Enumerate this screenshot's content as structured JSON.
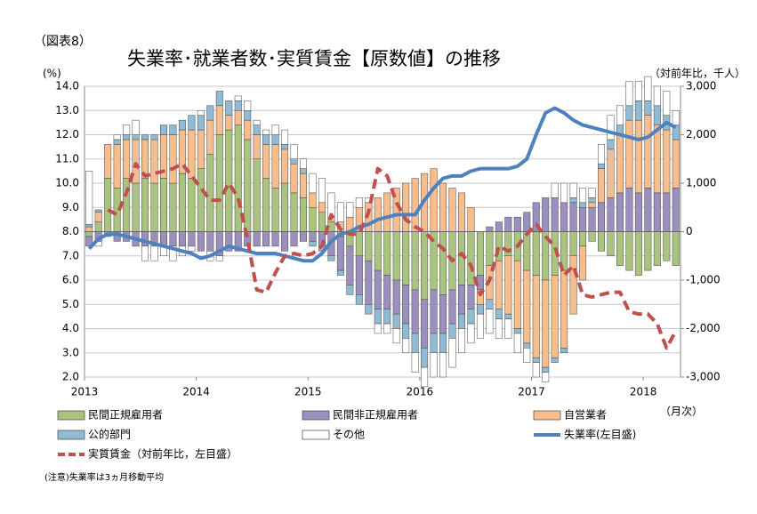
{
  "chart_data": {
    "type": "bar",
    "label": "（図表8）",
    "title": "失業率･就業者数･実質賃金【原数値】の推移",
    "ylabel": "(%)",
    "y2label": "（対前年比，千人）",
    "xlabel": "（月次）",
    "note": "(注意)失業率は3ヵ月移動平均",
    "stacked": true,
    "grid": true,
    "categories": [
      "2013",
      null,
      null,
      null,
      null,
      null,
      null,
      null,
      null,
      null,
      null,
      null,
      "2014",
      null,
      null,
      null,
      null,
      null,
      null,
      null,
      null,
      null,
      null,
      null,
      "2015",
      null,
      null,
      null,
      null,
      null,
      null,
      null,
      null,
      null,
      null,
      null,
      "2016",
      null,
      null,
      null,
      null,
      null,
      null,
      null,
      null,
      null,
      null,
      null,
      "2017",
      null,
      null,
      null,
      null,
      null,
      null,
      null,
      null,
      null,
      null,
      null,
      "2018",
      null,
      null,
      null
    ],
    "ylim": [
      2,
      14
    ],
    "yticks": [
      {
        "value": 2,
        "label": "2.0"
      },
      {
        "value": 3,
        "label": "3.0"
      },
      {
        "value": 4,
        "label": "4.0"
      },
      {
        "value": 5,
        "label": "5.0"
      },
      {
        "value": 6,
        "label": "6.0"
      },
      {
        "value": 7,
        "label": "7.0"
      },
      {
        "value": 8,
        "label": "8.0"
      },
      {
        "value": 9,
        "label": "9.0"
      },
      {
        "value": 10,
        "label": "10.0"
      },
      {
        "value": 11,
        "label": "11.0"
      },
      {
        "value": 12,
        "label": "12.0"
      },
      {
        "value": 13,
        "label": "13.0"
      },
      {
        "value": 14,
        "label": "14.0"
      }
    ],
    "y2lim": [
      -3000,
      3000
    ],
    "y2ticks": [
      {
        "value": -3000,
        "label": "-3,000"
      },
      {
        "value": -2000,
        "label": "-2,000"
      },
      {
        "value": -1000,
        "label": "-1,000"
      },
      0,
      {
        "value": 1000,
        "label": "1,000"
      },
      {
        "value": 2000,
        "label": "2,000"
      },
      {
        "value": 3000,
        "label": "3,000"
      }
    ],
    "series": [
      {
        "name": "民間正規雇用者",
        "color": "#a9c47f",
        "axis": "y2",
        "values": [
          -100,
          200,
          1100,
          900,
          1100,
          1000,
          1100,
          1000,
          1100,
          1000,
          1200,
          1100,
          1300,
          1600,
          2000,
          2100,
          2200,
          1900,
          1500,
          1100,
          900,
          1000,
          800,
          700,
          500,
          400,
          200,
          -100,
          -300,
          -500,
          -600,
          -800,
          -900,
          -1000,
          -1100,
          -1200,
          -1400,
          -1200,
          -1300,
          -1200,
          -1100,
          -1100,
          -900,
          -700,
          -600,
          -500,
          -600,
          -800,
          -900,
          -1000,
          -900,
          -800,
          -500,
          -300,
          -200,
          -400,
          -500,
          -700,
          -800,
          -900,
          -800,
          -700,
          -600,
          -700
        ]
      },
      {
        "name": "民間非正規雇用者",
        "color": "#9b8fc0",
        "axis": "y2",
        "values": [
          -200,
          -200,
          -100,
          -200,
          -200,
          -300,
          -300,
          -300,
          -300,
          -300,
          -300,
          -300,
          -400,
          -400,
          -500,
          -400,
          -400,
          -300,
          -300,
          -300,
          -300,
          -400,
          -300,
          -200,
          -200,
          -300,
          -500,
          -700,
          -800,
          -800,
          -900,
          -800,
          -700,
          -700,
          -800,
          -900,
          -1000,
          -900,
          -800,
          -700,
          -600,
          -500,
          -300,
          100,
          200,
          300,
          300,
          400,
          600,
          700,
          700,
          600,
          600,
          500,
          500,
          600,
          700,
          800,
          900,
          800,
          900,
          800,
          800,
          900
        ]
      },
      {
        "name": "自営業者",
        "color": "#f7bd8c",
        "axis": "y2",
        "values": [
          100,
          200,
          700,
          900,
          800,
          900,
          800,
          900,
          900,
          1000,
          900,
          1000,
          800,
          700,
          600,
          300,
          300,
          400,
          500,
          700,
          900,
          700,
          600,
          500,
          300,
          200,
          100,
          200,
          300,
          500,
          600,
          700,
          800,
          900,
          1000,
          1100,
          1200,
          1300,
          1000,
          900,
          800,
          500,
          -300,
          -700,
          -1000,
          -1200,
          -1400,
          -1500,
          -1700,
          -1800,
          -1700,
          -1600,
          -1200,
          -700,
          100,
          700,
          1000,
          1200,
          1400,
          1500,
          1500,
          1400,
          1300,
          1000
        ]
      },
      {
        "name": "公的部門",
        "color": "#8fbcd4",
        "axis": "y2",
        "values": [
          50,
          50,
          0,
          100,
          100,
          100,
          100,
          100,
          200,
          200,
          200,
          300,
          300,
          300,
          300,
          300,
          200,
          200,
          200,
          200,
          200,
          100,
          100,
          100,
          -100,
          -100,
          -100,
          -100,
          -200,
          -200,
          -200,
          -300,
          -300,
          -300,
          -300,
          -400,
          -400,
          -400,
          -400,
          -300,
          -300,
          -300,
          -200,
          -200,
          -200,
          -100,
          -100,
          -100,
          -100,
          -100,
          -100,
          -100,
          100,
          100,
          100,
          100,
          200,
          200,
          300,
          400,
          300,
          400,
          300,
          300
        ]
      },
      {
        "name": "その他",
        "color": "#ffffff",
        "axis": "y2",
        "values": [
          1100,
          -100,
          0,
          100,
          200,
          300,
          -300,
          -300,
          -200,
          -300,
          -200,
          -100,
          100,
          -200,
          -100,
          0,
          100,
          200,
          100,
          100,
          200,
          300,
          300,
          200,
          400,
          500,
          500,
          400,
          300,
          200,
          100,
          -200,
          -200,
          -300,
          -300,
          -400,
          -400,
          -500,
          -500,
          -600,
          -500,
          -400,
          -500,
          -500,
          -400,
          -400,
          -400,
          -300,
          -300,
          -200,
          300,
          400,
          300,
          300,
          200,
          400,
          500,
          400,
          500,
          400,
          500,
          400,
          500,
          300
        ]
      },
      {
        "name": "失業率(左目盛)",
        "type": "line",
        "color": "#4f81bd",
        "values": [
          7.3,
          7.7,
          7.9,
          7.9,
          7.8,
          7.7,
          7.6,
          7.5,
          7.4,
          7.3,
          7.2,
          7.1,
          6.9,
          7.0,
          7.2,
          7.4,
          7.3,
          7.2,
          7.1,
          7.1,
          7.1,
          7.0,
          6.9,
          6.8,
          6.8,
          7.1,
          7.6,
          7.9,
          8.0,
          8.2,
          8.3,
          8.5,
          8.6,
          8.7,
          8.7,
          8.7,
          9.3,
          9.8,
          10.2,
          10.3,
          10.3,
          10.5,
          10.6,
          10.6,
          10.6,
          10.6,
          10.7,
          11.0,
          12.0,
          12.9,
          13.1,
          12.9,
          12.6,
          12.4,
          12.3,
          12.2,
          12.1,
          12.0,
          11.9,
          11.8,
          11.9,
          12.2,
          12.5,
          12.3
        ]
      },
      {
        "name": "実質賃金（対前年比，左目盛）",
        "type": "line",
        "dashed": true,
        "color": "#c0504d",
        "values": [
          null,
          null,
          8.9,
          8.7,
          9.6,
          10.8,
          10.3,
          10.4,
          10.5,
          10.6,
          10.8,
          10.3,
          9.8,
          9.3,
          9.3,
          10.0,
          9.4,
          7.7,
          5.6,
          5.5,
          6.3,
          7.0,
          7.1,
          7.0,
          7.1,
          7.4,
          8.7,
          8.1,
          7.9,
          7.9,
          8.8,
          10.6,
          10.3,
          9.2,
          8.5,
          8.2,
          8.0,
          7.6,
          7.3,
          6.8,
          7.1,
          6.6,
          5.4,
          6.0,
          7.4,
          7.2,
          7.4,
          7.9,
          8.3,
          7.8,
          7.4,
          6.2,
          6.6,
          5.4,
          5.3,
          5.4,
          5.5,
          5.5,
          4.7,
          4.6,
          4.6,
          4.2,
          3.2,
          3.9
        ]
      }
    ]
  }
}
